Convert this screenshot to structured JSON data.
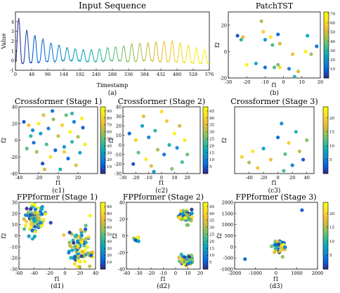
{
  "chart_data": [
    {
      "id": "input",
      "type": "line",
      "title": "Input Sequence",
      "xlabel": "Timestamp",
      "ylabel": "Value",
      "caption": "(a)",
      "xlim": [
        0,
        576
      ],
      "ylim": [
        -1,
        5
      ],
      "xticks": [
        0,
        48,
        96,
        144,
        192,
        240,
        288,
        336,
        384,
        432,
        480,
        528,
        576
      ],
      "yticks": [
        -1,
        0,
        1,
        2,
        3,
        4
      ],
      "series": [
        {
          "period": 24,
          "peaks": [
            4.3,
            3.1,
            2.6,
            2.2,
            1.8,
            1.6,
            1.3,
            1.2,
            1.1,
            1.1,
            1.2,
            1.3,
            1.4,
            1.5,
            1.7,
            1.8,
            1.8,
            1.9,
            2.0,
            2.0,
            1.8,
            1.6,
            1.3,
            1.1
          ],
          "troughs": [
            -0.3,
            -0.2,
            -0.2,
            -0.1,
            -0.1,
            0.0,
            0.0,
            0.0,
            -0.1,
            -0.1,
            -0.1,
            0.0,
            0.0,
            -0.1,
            -0.1,
            0.0,
            0.0,
            -0.1,
            -0.1,
            -0.1,
            -0.2,
            -0.2,
            -0.3,
            -0.3
          ]
        }
      ]
    },
    {
      "id": "patchtst",
      "type": "scatter",
      "title": "PatchTST",
      "xlabel": "f1",
      "ylabel": "f2",
      "caption": "(b)",
      "xlim": [
        -30,
        20
      ],
      "ylim": [
        -20,
        30
      ],
      "xticks": [
        -30,
        -20,
        -10,
        0,
        10,
        20
      ],
      "yticks": [
        -20,
        0,
        20
      ],
      "colorbar": {
        "min": 0,
        "max": 72,
        "ticks": [
          10,
          20,
          30,
          40,
          50,
          60,
          70
        ]
      },
      "points": [
        [
          -25,
          12,
          5
        ],
        [
          -23,
          9,
          30
        ],
        [
          -22,
          11,
          55
        ],
        [
          -12,
          23,
          45
        ],
        [
          -11,
          15,
          60
        ],
        [
          -10,
          9,
          20
        ],
        [
          -7,
          11,
          65
        ],
        [
          -6,
          5,
          35
        ],
        [
          -3,
          13,
          8
        ],
        [
          -2,
          6,
          50
        ],
        [
          -20,
          -10,
          70
        ],
        [
          -15,
          -9,
          25
        ],
        [
          -10,
          -12,
          10
        ],
        [
          -3,
          -10,
          40
        ],
        [
          -2,
          -12,
          62
        ],
        [
          3,
          -13,
          15
        ],
        [
          5,
          -2,
          55
        ],
        [
          6,
          -19,
          30
        ],
        [
          12,
          0,
          68
        ],
        [
          13,
          12,
          25
        ],
        [
          15,
          -2,
          45
        ],
        [
          18,
          4,
          12
        ],
        [
          8,
          -15,
          52
        ],
        [
          -5,
          -12,
          35
        ]
      ]
    },
    {
      "id": "cf1",
      "type": "scatter",
      "title": "Crossformer (Stage 1)",
      "xlabel": "f1",
      "ylabel": "f2",
      "caption": "(c1)",
      "xlim": [
        -40,
        40
      ],
      "ylim": [
        -40,
        40
      ],
      "xticks": [
        -40,
        -20,
        0,
        20
      ],
      "yticks": [
        -40,
        -20,
        0,
        20,
        40
      ],
      "colorbar": {
        "min": 0,
        "max": 96,
        "ticks": [
          10,
          20,
          30,
          40,
          50,
          60,
          70,
          80,
          90
        ]
      },
      "points": [
        [
          -35,
          22,
          8
        ],
        [
          -30,
          18,
          75
        ],
        [
          -28,
          5,
          40
        ],
        [
          -25,
          -3,
          15
        ],
        [
          -22,
          -14,
          60
        ],
        [
          -20,
          20,
          90
        ],
        [
          -18,
          8,
          30
        ],
        [
          -16,
          -28,
          5
        ],
        [
          -15,
          30,
          70
        ],
        [
          -12,
          -5,
          45
        ],
        [
          -10,
          14,
          20
        ],
        [
          -8,
          -20,
          85
        ],
        [
          -5,
          25,
          55
        ],
        [
          -3,
          -12,
          10
        ],
        [
          0,
          5,
          65
        ],
        [
          2,
          -35,
          35
        ],
        [
          4,
          18,
          80
        ],
        [
          6,
          -8,
          25
        ],
        [
          8,
          30,
          50
        ],
        [
          10,
          -22,
          12
        ],
        [
          12,
          10,
          95
        ],
        [
          14,
          -2,
          40
        ],
        [
          16,
          22,
          18
        ],
        [
          18,
          -30,
          70
        ],
        [
          20,
          4,
          60
        ],
        [
          22,
          -15,
          30
        ],
        [
          25,
          15,
          8
        ],
        [
          27,
          -5,
          88
        ],
        [
          -32,
          -10,
          48
        ],
        [
          -26,
          12,
          22
        ],
        [
          -14,
          -35,
          66
        ],
        [
          -6,
          35,
          14
        ],
        [
          6,
          -14,
          78
        ],
        [
          14,
          32,
          42
        ],
        [
          24,
          26,
          92
        ]
      ]
    },
    {
      "id": "cf2",
      "type": "scatter",
      "title": "Crossformer (Stage 2)",
      "xlabel": "f1",
      "ylabel": "f2",
      "caption": "(c2)",
      "xlim": [
        -30,
        30
      ],
      "ylim": [
        -30,
        40
      ],
      "xticks": [
        -30,
        -20,
        -10,
        0,
        10,
        20
      ],
      "yticks": [
        -30,
        -20,
        -10,
        0,
        10,
        20,
        30,
        40
      ],
      "colorbar": {
        "min": 0,
        "max": 48,
        "ticks": [
          5,
          10,
          15,
          20,
          25,
          30,
          35,
          40,
          45
        ]
      },
      "points": [
        [
          -25,
          12,
          5
        ],
        [
          -20,
          5,
          40
        ],
        [
          -18,
          -8,
          25
        ],
        [
          -15,
          20,
          15
        ],
        [
          -12,
          -15,
          45
        ],
        [
          -10,
          8,
          10
        ],
        [
          -8,
          -22,
          35
        ],
        [
          -5,
          15,
          20
        ],
        [
          -3,
          -5,
          30
        ],
        [
          0,
          35,
          42
        ],
        [
          2,
          -10,
          8
        ],
        [
          4,
          25,
          38
        ],
        [
          6,
          0,
          18
        ],
        [
          8,
          -25,
          28
        ],
        [
          10,
          12,
          46
        ],
        [
          12,
          -3,
          12
        ],
        [
          14,
          20,
          33
        ],
        [
          16,
          -18,
          22
        ],
        [
          18,
          5,
          44
        ],
        [
          -22,
          -20,
          3
        ],
        [
          -14,
          30,
          36
        ],
        [
          -6,
          -28,
          14
        ],
        [
          20,
          -10,
          26
        ]
      ]
    },
    {
      "id": "cf3",
      "type": "scatter",
      "title": "Crossformer (Stage 3)",
      "xlabel": "f1",
      "ylabel": "f2",
      "caption": "(c3)",
      "xlim": [
        -60,
        50
      ],
      "ylim": [
        -40,
        80
      ],
      "xticks": [
        -40,
        -20,
        0,
        20,
        40
      ],
      "yticks": [],
      "colorbar": {
        "min": 0,
        "max": 24,
        "ticks": [
          5,
          10,
          15,
          20
        ]
      },
      "points": [
        [
          -50,
          -10,
          20
        ],
        [
          -40,
          -20,
          15
        ],
        [
          -35,
          0,
          22
        ],
        [
          -20,
          5,
          8
        ],
        [
          -10,
          -15,
          18
        ],
        [
          0,
          25,
          3
        ],
        [
          5,
          50,
          6
        ],
        [
          10,
          -5,
          12
        ],
        [
          15,
          15,
          20
        ],
        [
          20,
          -25,
          5
        ],
        [
          25,
          35,
          10
        ],
        [
          30,
          0,
          16
        ],
        [
          35,
          -15,
          2
        ],
        [
          40,
          20,
          14
        ],
        [
          -28,
          -30,
          19
        ],
        [
          8,
          -35,
          11
        ]
      ]
    },
    {
      "id": "fpp1",
      "type": "scatter",
      "title": "FPPformer (Stage 1)",
      "xlabel": "f1",
      "ylabel": "f2",
      "caption": "(d1)",
      "xlim": [
        -60,
        40
      ],
      "ylim": [
        -30,
        30
      ],
      "xticks": [
        -60,
        -40,
        -20,
        0,
        20,
        40
      ],
      "yticks": [
        -30,
        -20,
        -10,
        0,
        10,
        20,
        30
      ],
      "colorbar": {
        "min": 0,
        "max": 96,
        "ticks": [
          10,
          20,
          30,
          40,
          50,
          60,
          70,
          80,
          90
        ]
      },
      "clusters": [
        {
          "cx": -38,
          "cy": 14,
          "sx": 8,
          "sy": 7,
          "n": 90
        },
        {
          "cx": 18,
          "cy": -10,
          "sx": 7,
          "sy": 9,
          "n": 90
        },
        {
          "cx": 34,
          "cy": -17,
          "sx": 2,
          "sy": 2,
          "n": 12
        }
      ]
    },
    {
      "id": "fpp2",
      "type": "scatter",
      "title": "FPPformer (Stage 2)",
      "xlabel": "f1",
      "ylabel": "f2",
      "caption": "(d2)",
      "xlim": [
        -40,
        20
      ],
      "ylim": [
        -40,
        40
      ],
      "xticks": [
        -40,
        -30,
        -20,
        -10,
        0,
        10,
        20
      ],
      "yticks": [
        -40,
        -20,
        0,
        20,
        40
      ],
      "colorbar": {
        "min": 0,
        "max": 48,
        "ticks": [
          5,
          10,
          15,
          20,
          25,
          30,
          35,
          40,
          45
        ]
      },
      "clusters": [
        {
          "cx": -32,
          "cy": -3,
          "sx": 1.2,
          "sy": 1.5,
          "n": 14
        },
        {
          "cx": 8,
          "cy": 24,
          "sx": 2.5,
          "sy": 4,
          "n": 60
        },
        {
          "cx": 8,
          "cy": -29,
          "sx": 3,
          "sy": 3,
          "n": 60
        }
      ]
    },
    {
      "id": "fpp3",
      "type": "scatter",
      "title": "FPPformer (Stage 3)",
      "xlabel": "f1",
      "ylabel": "f2",
      "caption": "(d3)",
      "xlim": [
        -2000,
        2000
      ],
      "ylim": [
        -1000,
        2000
      ],
      "xticks": [
        -2000,
        -1000,
        0,
        1000,
        2000
      ],
      "yticks": [
        -1000,
        -500,
        0,
        500,
        1000,
        1500,
        2000
      ],
      "colorbar": {
        "min": 0,
        "max": 24,
        "ticks": [
          5,
          10,
          15,
          20
        ]
      },
      "points": [
        [
          -1500,
          -550,
          3
        ],
        [
          1250,
          1650,
          2
        ]
      ],
      "clusters": [
        {
          "cx": 150,
          "cy": 0,
          "sx": 150,
          "sy": 180,
          "n": 55
        }
      ]
    }
  ]
}
